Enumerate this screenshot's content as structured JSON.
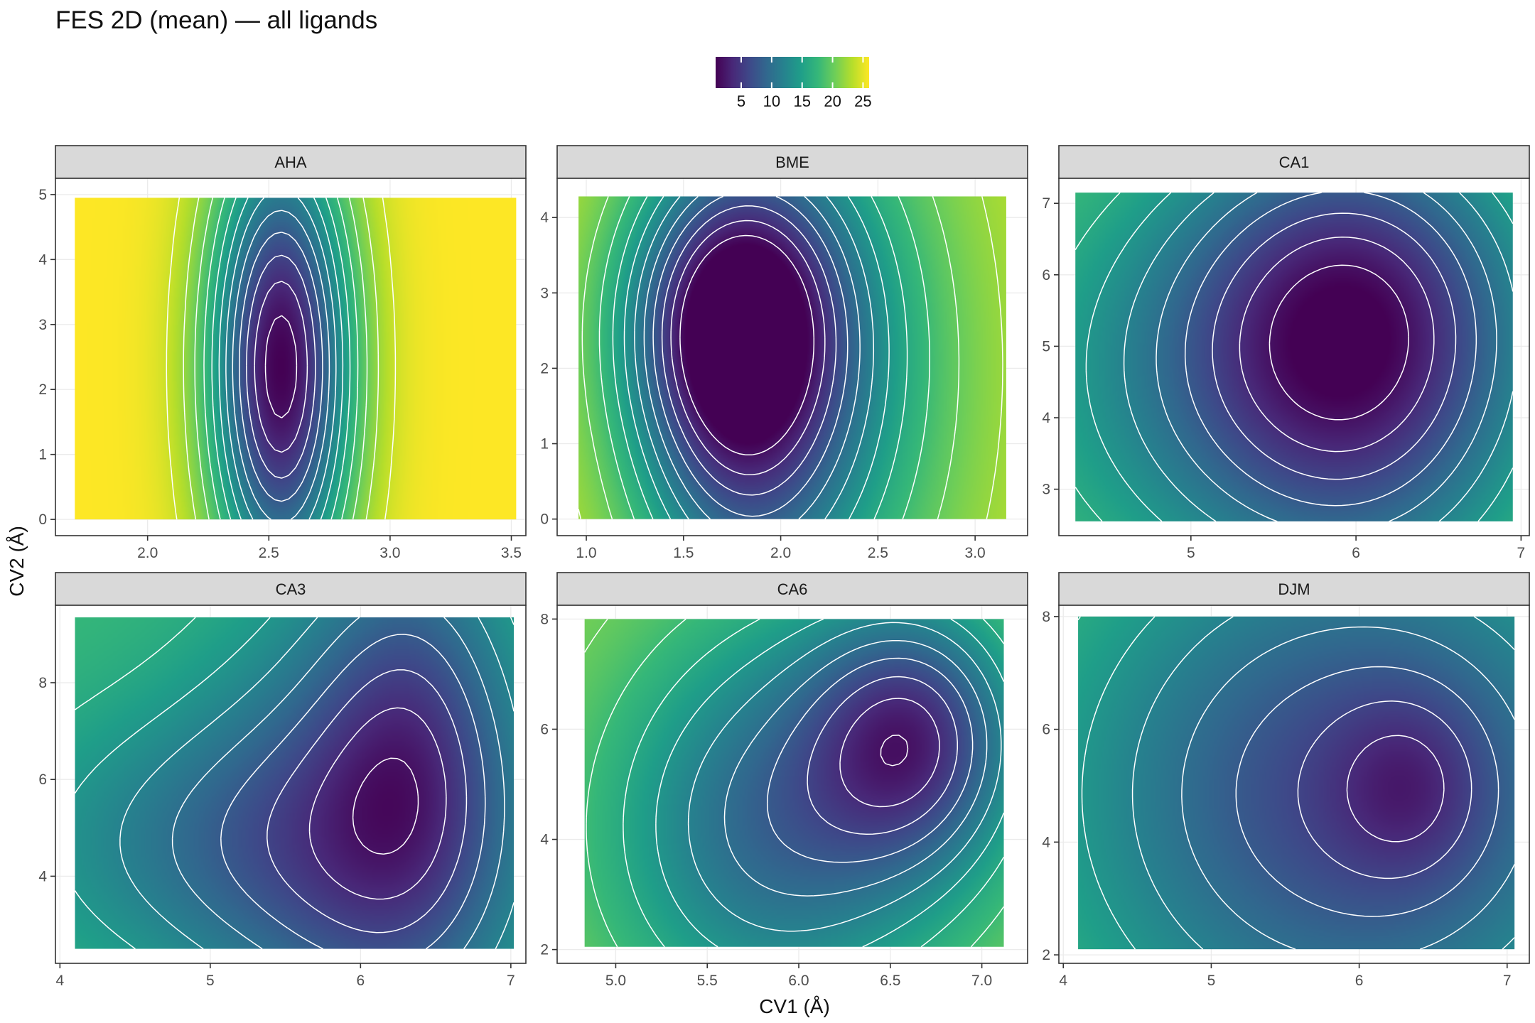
{
  "title": "FES 2D (mean) — all ligands",
  "xlabel": "CV1 (Å)",
  "ylabel": "CV2 (Å)",
  "colors": {
    "viridis": [
      "#440154",
      "#482878",
      "#3e4989",
      "#31688e",
      "#26828e",
      "#1f9e89",
      "#35b779",
      "#6ece58",
      "#b5de2b",
      "#fde725"
    ],
    "contour": "#ffffff",
    "strip_fill": "#d9d9d9",
    "panel_border": "#333333",
    "grid": "#ebebeb"
  },
  "chart_data": {
    "type": "heatmap",
    "subtype": "faceted 2D free energy surface with white contour lines",
    "legend": {
      "position": "top",
      "ticks": [
        5,
        10,
        15,
        20,
        25
      ],
      "range": [
        0.8,
        26
      ]
    },
    "grid": true,
    "panels": [
      {
        "label": "AHA",
        "xlim": [
          1.62,
          3.56
        ],
        "ylim": [
          -0.25,
          5.25
        ],
        "xrange": [
          1.7,
          3.52
        ],
        "yrange": [
          0.0,
          4.95
        ],
        "xticks": [
          "2.0",
          "2.5",
          "3.0",
          "3.5"
        ],
        "xtick_values": [
          2.0,
          2.5,
          3.0,
          3.5
        ],
        "yticks": [
          "0",
          "1",
          "2",
          "3",
          "4",
          "5"
        ],
        "ytick_values": [
          0,
          1,
          2,
          3,
          4,
          5
        ],
        "max_fe": 26,
        "wells": [
          {
            "x": 2.55,
            "y": 2.35,
            "depth": 25.2,
            "sx": 0.23,
            "sy": 1.02
          }
        ]
      },
      {
        "label": "BME",
        "xlim": [
          0.85,
          3.27
        ],
        "ylim": [
          -0.22,
          4.52
        ],
        "xrange": [
          0.96,
          3.16
        ],
        "yrange": [
          0.0,
          4.28
        ],
        "xticks": [
          "1.0",
          "1.5",
          "2.0",
          "2.5",
          "3.0"
        ],
        "xtick_values": [
          1.0,
          1.5,
          2.0,
          2.5,
          3.0
        ],
        "yticks": [
          "0",
          "1",
          "2",
          "3",
          "4"
        ],
        "ytick_values": [
          0,
          1,
          2,
          3,
          4
        ],
        "max_fe": 24,
        "wells": [
          {
            "x": 1.75,
            "y": 1.75,
            "depth": 12,
            "sx": 0.35,
            "sy": 0.95
          },
          {
            "x": 1.75,
            "y": 2.75,
            "depth": 11,
            "sx": 0.35,
            "sy": 0.6
          },
          {
            "x": 2.15,
            "y": 2.0,
            "depth": 10,
            "sx": 0.5,
            "sy": 1.3
          }
        ]
      },
      {
        "label": "CA1",
        "xlim": [
          4.2,
          7.05
        ],
        "ylim": [
          2.35,
          7.35
        ],
        "xrange": [
          4.3,
          6.95
        ],
        "yrange": [
          2.55,
          7.15
        ],
        "xticks": [
          "5",
          "6",
          "7"
        ],
        "xtick_values": [
          5,
          6,
          7
        ],
        "yticks": [
          "3",
          "4",
          "5",
          "6",
          "7"
        ],
        "ytick_values": [
          3,
          4,
          5,
          6,
          7
        ],
        "max_fe": 21,
        "wells": [
          {
            "x": 6.05,
            "y": 5.85,
            "depth": 11,
            "sx": 0.55,
            "sy": 0.75
          },
          {
            "x": 5.3,
            "y": 4.6,
            "depth": 9,
            "sx": 0.8,
            "sy": 1.0
          },
          {
            "x": 6.1,
            "y": 3.6,
            "depth": 6,
            "sx": 0.55,
            "sy": 0.8
          }
        ]
      },
      {
        "label": "CA3",
        "xlim": [
          3.97,
          7.1
        ],
        "ylim": [
          2.2,
          9.6
        ],
        "xrange": [
          4.1,
          7.02
        ],
        "yrange": [
          2.5,
          9.35
        ],
        "xticks": [
          "4",
          "5",
          "6",
          "7"
        ],
        "xtick_values": [
          4,
          5,
          6,
          7
        ],
        "yticks": [
          "4",
          "6",
          "8"
        ],
        "ytick_values": [
          4,
          6,
          8
        ],
        "max_fe": 18,
        "wells": [
          {
            "x": 6.1,
            "y": 5.0,
            "depth": 9,
            "sx": 0.55,
            "sy": 1.1
          },
          {
            "x": 6.35,
            "y": 6.9,
            "depth": 6,
            "sx": 0.3,
            "sy": 0.9
          },
          {
            "x": 5.0,
            "y": 4.7,
            "depth": 6,
            "sx": 0.7,
            "sy": 0.6
          }
        ]
      },
      {
        "label": "CA6",
        "xlim": [
          4.68,
          7.25
        ],
        "ylim": [
          1.75,
          8.25
        ],
        "xrange": [
          4.83,
          7.12
        ],
        "yrange": [
          2.05,
          8.0
        ],
        "xticks": [
          "5.0",
          "5.5",
          "6.0",
          "6.5",
          "7.0"
        ],
        "xtick_values": [
          5.0,
          5.5,
          6.0,
          6.5,
          7.0
        ],
        "yticks": [
          "2",
          "4",
          "6",
          "8"
        ],
        "ytick_values": [
          2,
          4,
          6,
          8
        ],
        "max_fe": 22,
        "wells": [
          {
            "x": 6.65,
            "y": 5.9,
            "depth": 12,
            "sx": 0.35,
            "sy": 0.55
          },
          {
            "x": 6.1,
            "y": 4.9,
            "depth": 9,
            "sx": 0.65,
            "sy": 0.95
          },
          {
            "x": 5.7,
            "y": 3.7,
            "depth": 5,
            "sx": 0.55,
            "sy": 0.8
          }
        ]
      },
      {
        "label": "DJM",
        "xlim": [
          3.97,
          7.15
        ],
        "ylim": [
          1.85,
          8.2
        ],
        "xrange": [
          4.1,
          7.05
        ],
        "yrange": [
          2.1,
          8.0
        ],
        "xticks": [
          "4",
          "5",
          "6",
          "7"
        ],
        "xtick_values": [
          4,
          5,
          6,
          7
        ],
        "yticks": [
          "2",
          "4",
          "6",
          "8"
        ],
        "ytick_values": [
          2,
          4,
          6,
          8
        ],
        "max_fe": 20,
        "wells": [
          {
            "x": 5.95,
            "y": 4.85,
            "depth": 14,
            "sx": 0.95,
            "sy": 1.2
          },
          {
            "x": 6.35,
            "y": 5.0,
            "depth": 4,
            "sx": 0.25,
            "sy": 0.4
          }
        ]
      }
    ]
  }
}
